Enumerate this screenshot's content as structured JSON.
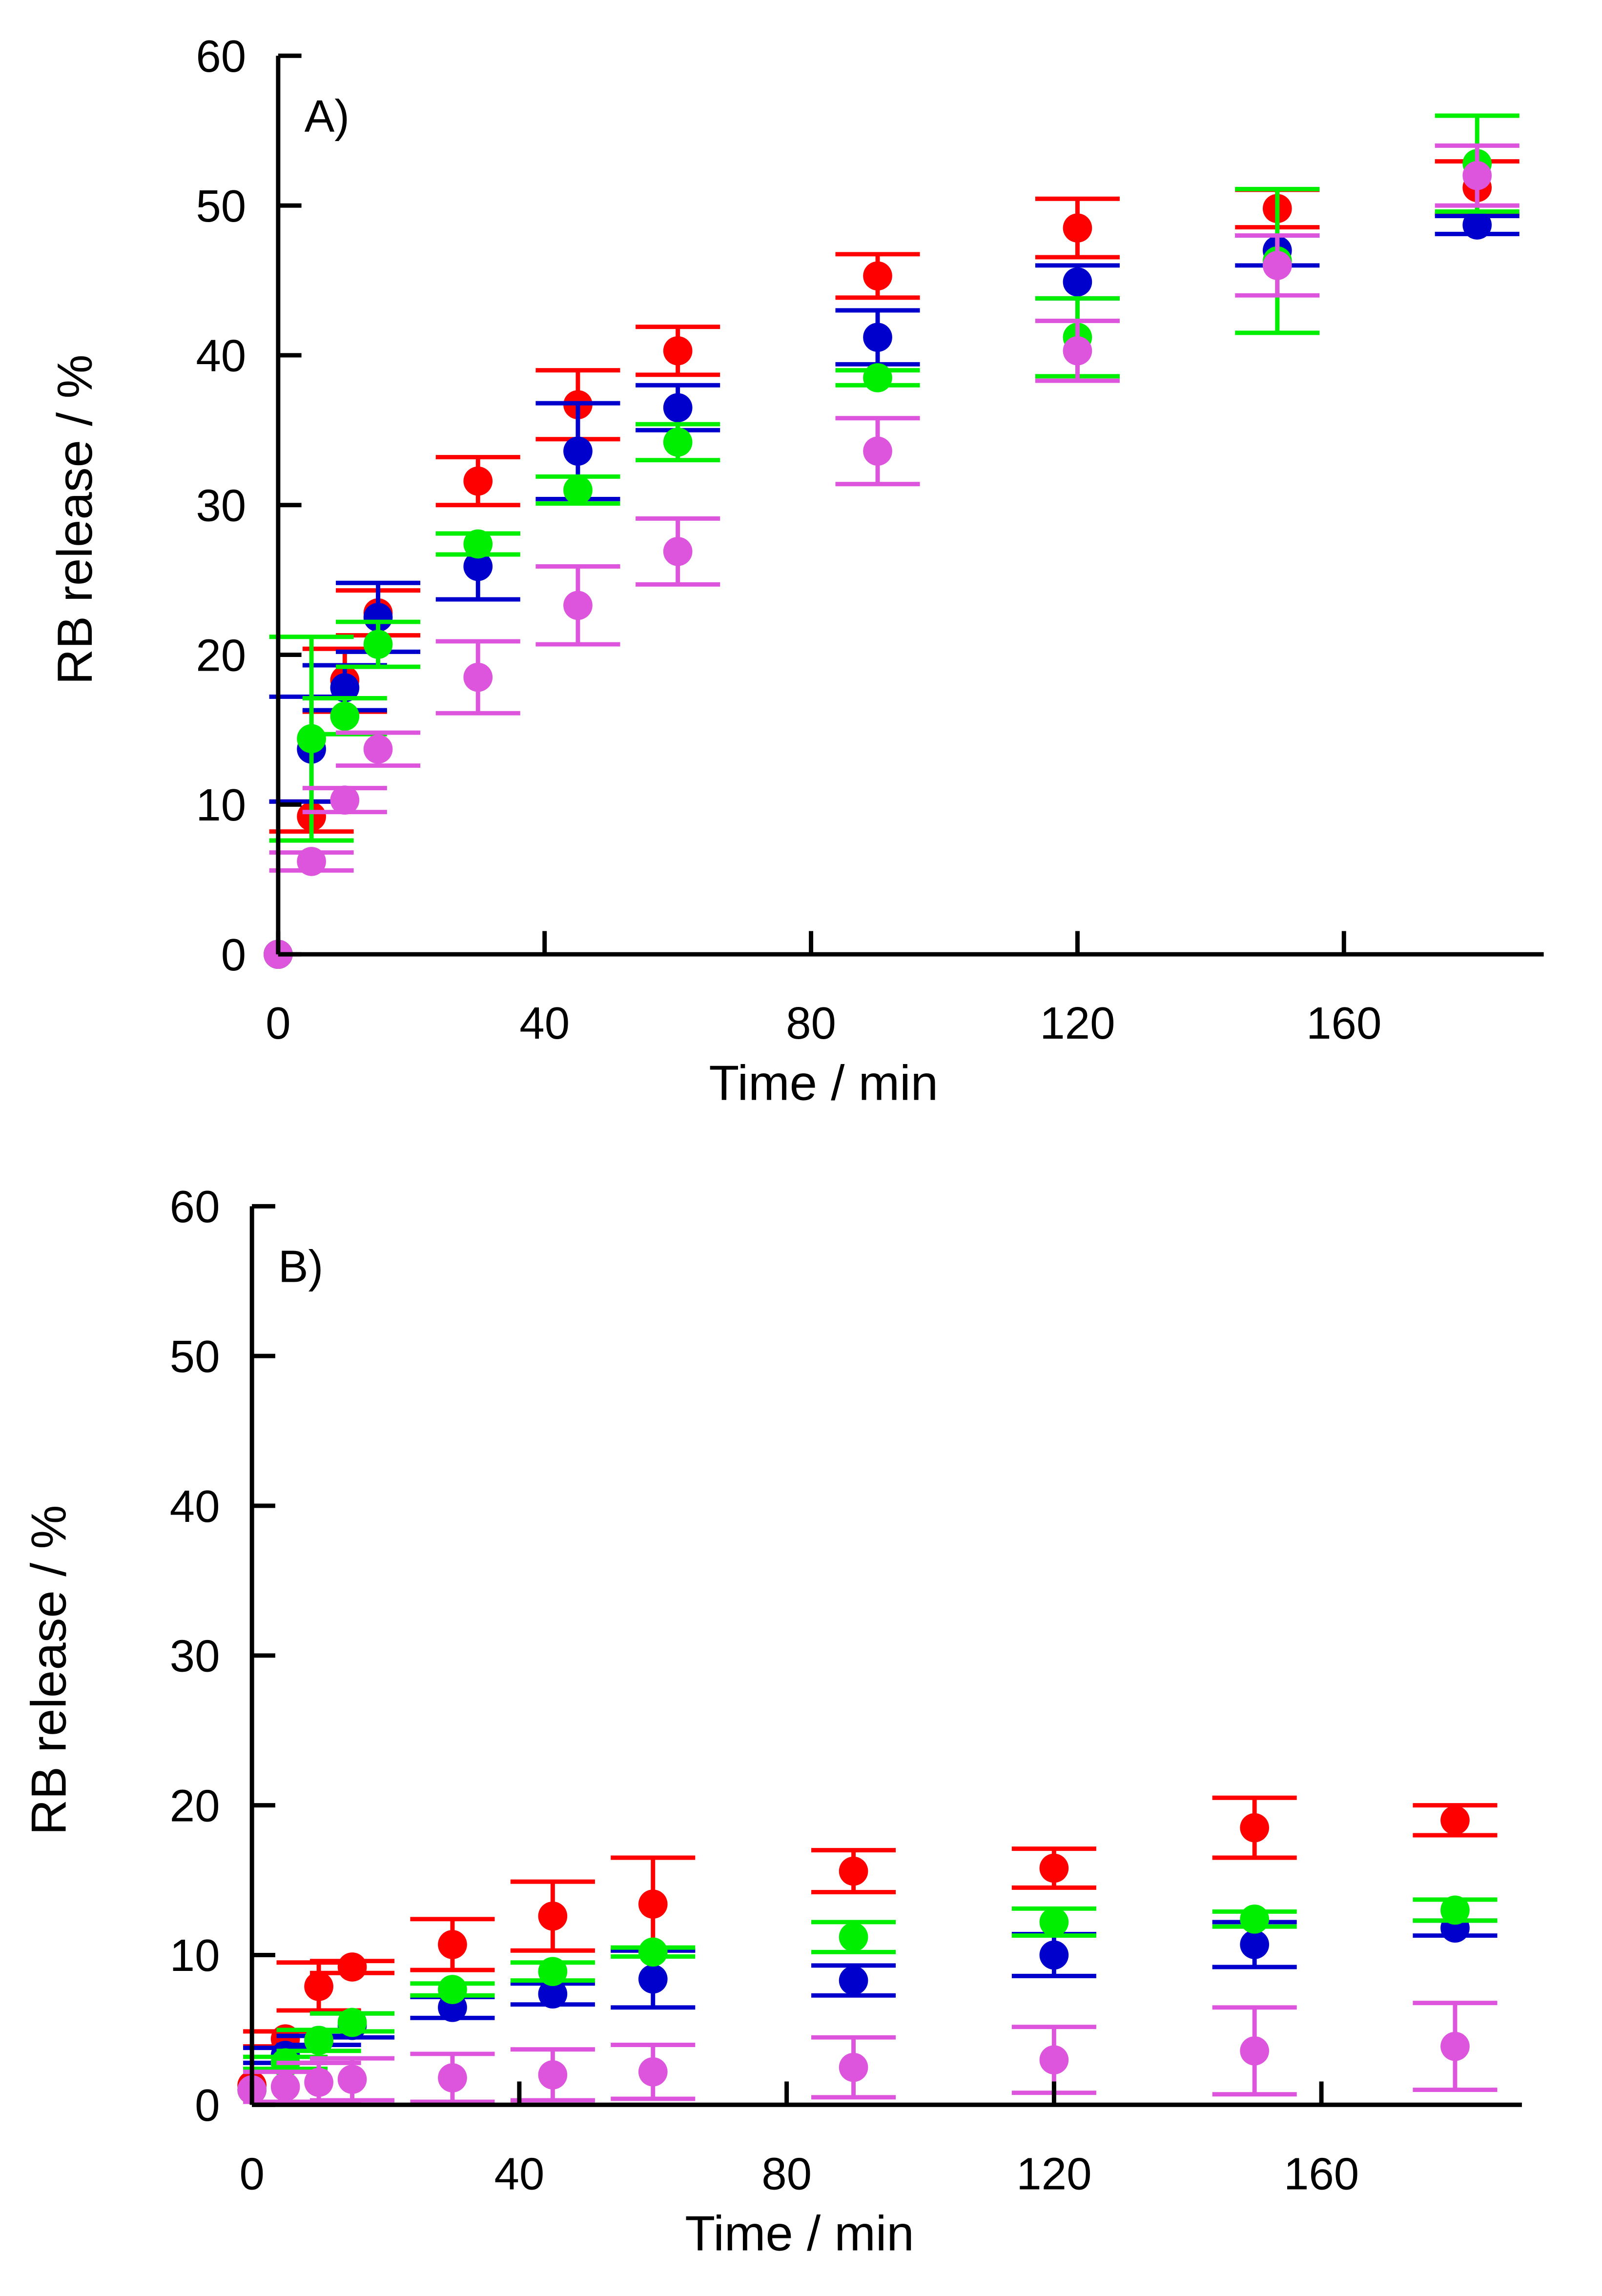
{
  "chart_data": [
    {
      "type": "scatter",
      "annotation": "A)",
      "xlabel": "Time / min",
      "ylabel": "RB release / %",
      "x": [
        0,
        5,
        10,
        15,
        30,
        45,
        60,
        90,
        120,
        150,
        180
      ],
      "xlim": [
        0,
        190
      ],
      "ylim": [
        0,
        60
      ],
      "xticks": [
        0,
        40,
        80,
        120,
        160
      ],
      "yticks": [
        0,
        10,
        20,
        30,
        40,
        50,
        60
      ],
      "series": [
        {
          "color": "#ff0000",
          "values": [
            0,
            9.2,
            18.3,
            22.8,
            31.6,
            36.7,
            40.3,
            45.3,
            48.5,
            49.8,
            51.2
          ],
          "errors": [
            0,
            1.0,
            2.1,
            1.5,
            1.6,
            2.3,
            1.6,
            1.45,
            1.95,
            1.25,
            1.75
          ]
        },
        {
          "color": "#0000cc",
          "values": [
            0,
            13.7,
            17.8,
            22.5,
            25.9,
            33.6,
            36.5,
            41.2,
            44.9,
            47,
            48.7
          ],
          "errors": [
            0,
            3.5,
            1.5,
            2.3,
            2.2,
            3.2,
            1.5,
            1.8,
            1.1,
            1,
            0.6
          ]
        },
        {
          "color": "#00ee00",
          "values": [
            0,
            14.4,
            15.9,
            20.7,
            27.4,
            31,
            34.2,
            38.5,
            41.2,
            46.3,
            52.8
          ],
          "errors": [
            0,
            6.8,
            1.2,
            1.5,
            0.7,
            0.9,
            1.2,
            0.5,
            2.6,
            4.8,
            3.2
          ]
        },
        {
          "color": "#dd55dd",
          "values": [
            0,
            6.2,
            10.3,
            13.7,
            18.5,
            23.3,
            26.9,
            33.6,
            40.3,
            46,
            52
          ],
          "errors": [
            0,
            0.6,
            0.8,
            1.1,
            2.4,
            2.6,
            2.2,
            2.2,
            2,
            2,
            2
          ]
        }
      ]
    },
    {
      "type": "scatter",
      "annotation": "B)",
      "xlabel": "Time / min",
      "ylabel": "RB release / %",
      "x": [
        0,
        5,
        10,
        15,
        30,
        45,
        60,
        90,
        120,
        150,
        180
      ],
      "xlim": [
        0,
        190
      ],
      "ylim": [
        0,
        60
      ],
      "xticks": [
        0,
        40,
        80,
        120,
        160
      ],
      "yticks": [
        0,
        10,
        20,
        30,
        40,
        50,
        60
      ],
      "series": [
        {
          "color": "#ff0000",
          "values": [
            1.3,
            4.4,
            7.9,
            9.2,
            10.7,
            12.6,
            13.4,
            15.6,
            15.8,
            18.5,
            19
          ],
          "errors": [
            0,
            0.5,
            1.6,
            0.4,
            1.7,
            2.3,
            3.1,
            1.4,
            1.3,
            2,
            1
          ]
        },
        {
          "color": "#0000cc",
          "values": [
            1,
            3.3,
            4.3,
            5.3,
            6.5,
            7.4,
            8.4,
            8.3,
            10,
            10.7,
            11.8
          ],
          "errors": [
            0,
            0.5,
            0.3,
            0.8,
            0.7,
            0.7,
            1.9,
            1,
            1.4,
            1.5,
            0.5
          ]
        },
        {
          "color": "#00ee00",
          "values": [
            1,
            2.8,
            4.3,
            5.5,
            7.7,
            8.9,
            10.2,
            11.2,
            12.2,
            12.4,
            13
          ],
          "errors": [
            0,
            0.4,
            0.7,
            0.6,
            0.4,
            0.6,
            0.3,
            1,
            0.9,
            0.5,
            0.7
          ]
        },
        {
          "color": "#dd55dd",
          "values": [
            1,
            1.2,
            1.5,
            1.7,
            1.8,
            2,
            2.2,
            2.5,
            3,
            3.6,
            3.9
          ],
          "errors": [
            0,
            1,
            1.3,
            1.4,
            1.6,
            1.7,
            1.8,
            2,
            2.2,
            2.9,
            2.9
          ]
        }
      ]
    }
  ]
}
